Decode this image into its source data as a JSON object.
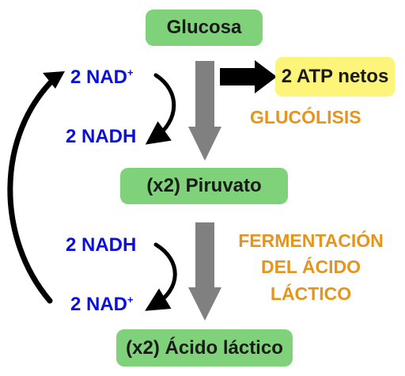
{
  "nodes": {
    "glucose": "Glucosa",
    "pyruvate": "(x2) Piruvato",
    "lactic_acid": "(x2) Ácido láctico",
    "atp": "2 ATP netos"
  },
  "labels": {
    "nad_base": "2 NAD",
    "nad_charge": "+",
    "nadh": "2 NADH",
    "glycolysis": "GLUCÓLISIS",
    "fermentation": [
      "FERMENTACIÓN",
      "DEL ÁCIDO",
      "LÁCTICO"
    ]
  },
  "colors": {
    "node_green": "#7fd27a",
    "atp_yellow": "#fdf47a",
    "nad_blue": "#0a10d8",
    "process_orange": "#e5941d",
    "flow_arrow_gray": "#808080"
  }
}
